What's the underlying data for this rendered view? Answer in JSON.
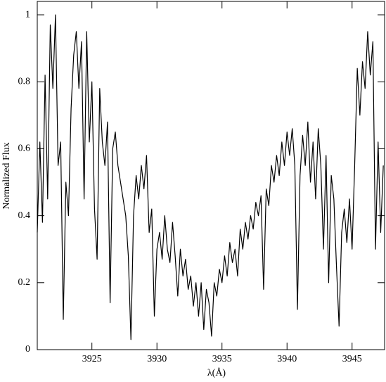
{
  "chart_data": {
    "type": "line",
    "xlabel": "λ(Å)",
    "ylabel": "Normalized Flux",
    "xlim": [
      3920.8,
      3947.5
    ],
    "ylim": [
      0,
      1.04
    ],
    "xticks": [
      3925,
      3930,
      3935,
      3940,
      3945
    ],
    "yticks": [
      0,
      0.2,
      0.4,
      0.6,
      0.8,
      1
    ],
    "x": [
      3920.8,
      3921.0,
      3921.2,
      3921.4,
      3921.6,
      3921.8,
      3922.0,
      3922.2,
      3922.4,
      3922.6,
      3922.8,
      3923.0,
      3923.2,
      3923.4,
      3923.6,
      3923.8,
      3924.0,
      3924.2,
      3924.4,
      3924.6,
      3924.8,
      3925.0,
      3925.2,
      3925.4,
      3925.6,
      3925.8,
      3926.0,
      3926.2,
      3926.4,
      3926.6,
      3926.8,
      3927.0,
      3927.2,
      3927.4,
      3927.6,
      3927.8,
      3928.0,
      3928.2,
      3928.4,
      3928.6,
      3928.8,
      3929.0,
      3929.2,
      3929.4,
      3929.6,
      3929.8,
      3930.0,
      3930.2,
      3930.4,
      3930.6,
      3930.8,
      3931.0,
      3931.2,
      3931.4,
      3931.6,
      3931.8,
      3932.0,
      3932.2,
      3932.4,
      3932.6,
      3932.8,
      3933.0,
      3933.2,
      3933.4,
      3933.6,
      3933.8,
      3934.0,
      3934.2,
      3934.4,
      3934.6,
      3934.8,
      3935.0,
      3935.2,
      3935.4,
      3935.6,
      3935.8,
      3936.0,
      3936.2,
      3936.4,
      3936.6,
      3936.8,
      3937.0,
      3937.2,
      3937.4,
      3937.6,
      3937.8,
      3938.0,
      3938.2,
      3938.4,
      3938.6,
      3938.8,
      3939.0,
      3939.2,
      3939.4,
      3939.6,
      3939.8,
      3940.0,
      3940.2,
      3940.4,
      3940.6,
      3940.8,
      3941.0,
      3941.2,
      3941.4,
      3941.6,
      3941.8,
      3942.0,
      3942.2,
      3942.4,
      3942.6,
      3942.8,
      3943.0,
      3943.2,
      3943.4,
      3943.6,
      3943.8,
      3944.0,
      3944.2,
      3944.4,
      3944.6,
      3944.8,
      3945.0,
      3945.2,
      3945.4,
      3945.6,
      3945.8,
      3946.0,
      3946.2,
      3946.4,
      3946.6,
      3946.8,
      3947.0,
      3947.2,
      3947.4
    ],
    "series": [
      {
        "color": "#000000",
        "values": [
          0.35,
          0.62,
          0.38,
          0.82,
          0.45,
          0.97,
          0.78,
          1.0,
          0.55,
          0.62,
          0.09,
          0.5,
          0.4,
          0.72,
          0.88,
          0.95,
          0.78,
          0.92,
          0.45,
          0.95,
          0.62,
          0.8,
          0.42,
          0.27,
          0.78,
          0.62,
          0.55,
          0.68,
          0.14,
          0.6,
          0.65,
          0.55,
          0.5,
          0.45,
          0.4,
          0.28,
          0.03,
          0.4,
          0.52,
          0.45,
          0.55,
          0.48,
          0.58,
          0.35,
          0.42,
          0.1,
          0.3,
          0.35,
          0.27,
          0.4,
          0.3,
          0.26,
          0.38,
          0.28,
          0.16,
          0.3,
          0.22,
          0.27,
          0.18,
          0.22,
          0.13,
          0.2,
          0.1,
          0.2,
          0.06,
          0.18,
          0.14,
          0.04,
          0.2,
          0.16,
          0.24,
          0.2,
          0.28,
          0.22,
          0.32,
          0.26,
          0.3,
          0.22,
          0.36,
          0.3,
          0.38,
          0.33,
          0.4,
          0.36,
          0.44,
          0.4,
          0.46,
          0.18,
          0.48,
          0.43,
          0.55,
          0.5,
          0.58,
          0.52,
          0.62,
          0.55,
          0.65,
          0.58,
          0.66,
          0.55,
          0.12,
          0.52,
          0.64,
          0.55,
          0.68,
          0.5,
          0.62,
          0.45,
          0.66,
          0.55,
          0.3,
          0.58,
          0.2,
          0.52,
          0.45,
          0.25,
          0.07,
          0.35,
          0.42,
          0.32,
          0.45,
          0.3,
          0.55,
          0.84,
          0.7,
          0.86,
          0.78,
          0.95,
          0.82,
          0.92,
          0.3,
          0.62,
          0.35,
          0.55
        ]
      }
    ]
  }
}
